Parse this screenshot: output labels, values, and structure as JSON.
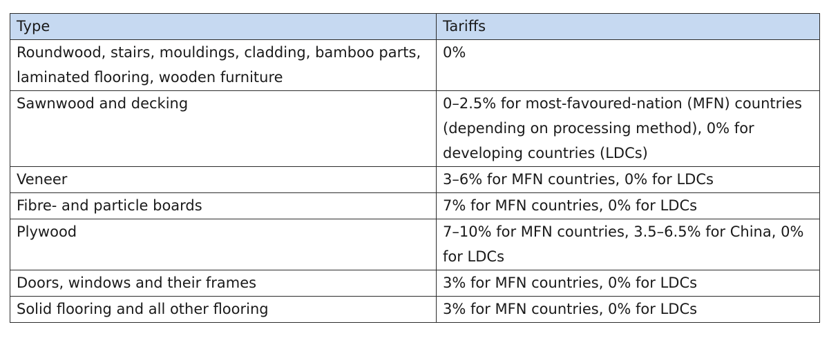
{
  "table": {
    "headers": {
      "type": "Type",
      "tariffs": "Tariffs"
    },
    "rows": [
      {
        "type": "Roundwood, stairs, mouldings, cladding, bamboo parts, laminated flooring, wooden furniture",
        "tariffs": "0%"
      },
      {
        "type": "Sawnwood and decking",
        "tariffs": "0–2.5% for most-favoured-nation (MFN) countries (depending on processing method), 0% for developing countries (LDCs)"
      },
      {
        "type": "Veneer",
        "tariffs": "3–6% for MFN countries, 0% for LDCs"
      },
      {
        "type": "Fibre- and particle boards",
        "tariffs": "7% for MFN countries, 0% for LDCs"
      },
      {
        "type": "Plywood",
        "tariffs": "7–10% for MFN countries, 3.5–6.5% for China, 0% for LDCs"
      },
      {
        "type": "Doors, windows and their frames",
        "tariffs": "3% for MFN countries, 0% for LDCs"
      },
      {
        "type": "Solid flooring and all other flooring",
        "tariffs": "3% for MFN countries, 0% for LDCs"
      }
    ]
  },
  "colors": {
    "header_background": "#c6d9f1",
    "border": "#2b2b2b",
    "text": "#1a1a1a"
  }
}
